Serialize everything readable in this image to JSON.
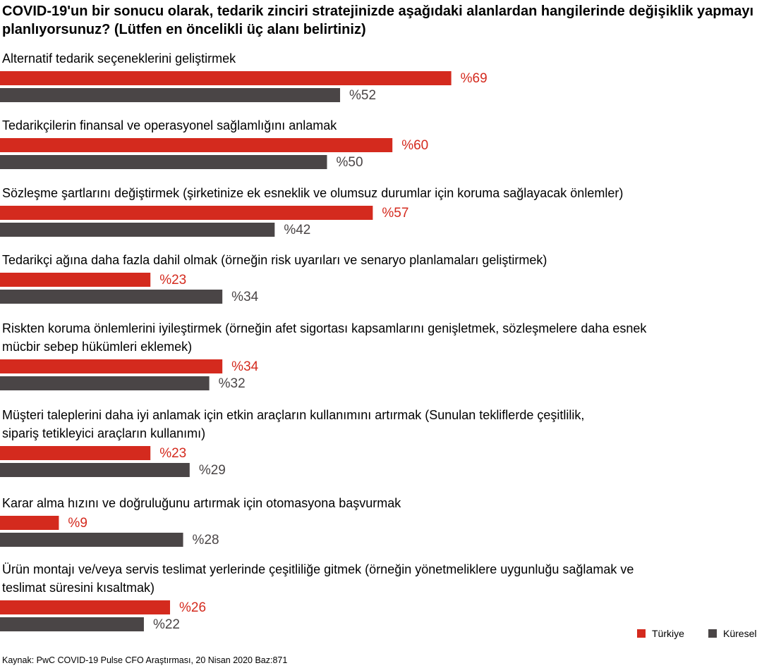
{
  "colors": {
    "turkey": "#d42a1e",
    "global": "#4a4546"
  },
  "chart_data": {
    "type": "bar",
    "orientation": "horizontal",
    "title": "COVID-19'un bir sonucu olarak, tedarik zinciri stratejinizde aşağıdaki alanlardan hangilerinde değişiklik yapmayı planlıyorsunuz? (Lütfen en öncelikli üç alanı belirtiniz)",
    "value_prefix": "%",
    "legend_position": "bottom-right",
    "categories": [
      [
        "Alternatif tedarik seçeneklerini geliştirmek"
      ],
      [
        "Tedarikçilerin finansal ve operasyonel sağlamlığını anlamak"
      ],
      [
        "Sözleşme şartlarını değiştirmek (şirketinize ek esneklik ve olumsuz durumlar için koruma sağlayacak önlemler)"
      ],
      [
        "Tedarikçi ağına daha fazla dahil olmak (örneğin risk uyarıları ve  senaryo planlamaları geliştirmek)"
      ],
      [
        "Riskten koruma önlemlerini iyileştirmek (örneğin afet sigortası kapsamlarını genişletmek, sözleşmelere daha esnek",
        "mücbir sebep hükümleri eklemek)"
      ],
      [
        "Müşteri taleplerini daha iyi anlamak için etkin araçların kullanımını artırmak (Sunulan tekliflerde çeşitlilik,",
        "sipariş tetikleyici araçların kullanımı)"
      ],
      [
        "Karar alma hızını ve doğruluğunu artırmak için otomasyona başvurmak"
      ],
      [
        "Ürün montajı ve/veya servis teslimat yerlerinde çeşitliliğe gitmek (örneğin yönetmeliklere uygunluğu sağlamak ve",
        "teslimat süresini kısaltmak)"
      ]
    ],
    "series": [
      {
        "name": "Türkiye",
        "values": [
          69,
          60,
          57,
          23,
          34,
          23,
          9,
          26
        ]
      },
      {
        "name": "Küresel",
        "values": [
          52,
          50,
          42,
          34,
          32,
          29,
          28,
          22
        ]
      }
    ]
  },
  "source": "Kaynak: PwC COVID-19 Pulse CFO Araştırması, 20 Nisan 2020 Baz:871"
}
